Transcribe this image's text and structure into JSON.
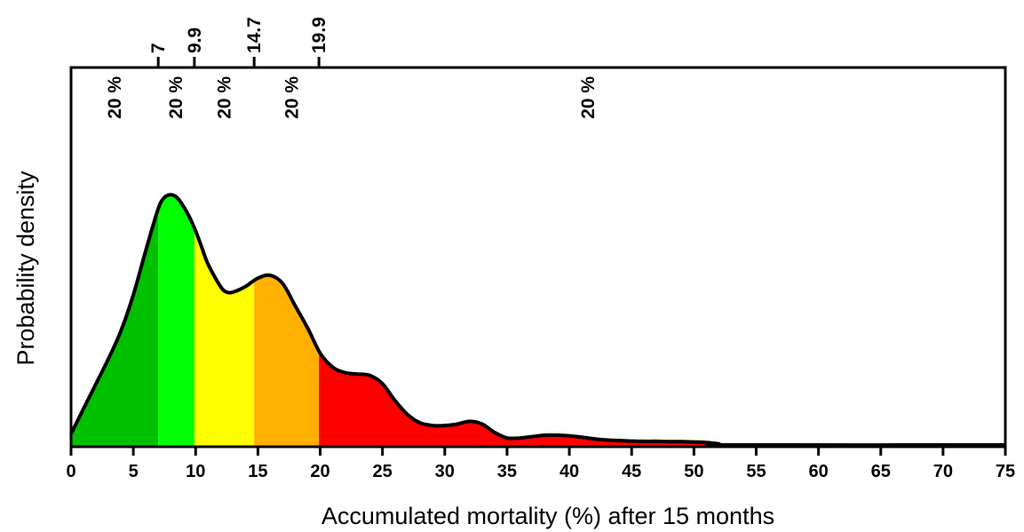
{
  "chart_data": {
    "type": "area",
    "xlabel": "Accumulated mortality (%) after 15 months",
    "ylabel": "Probability density",
    "xlim": [
      0,
      75
    ],
    "ylim": [
      0,
      1
    ],
    "x_ticks": [
      0,
      5,
      10,
      15,
      20,
      25,
      30,
      35,
      40,
      45,
      50,
      55,
      60,
      65,
      70,
      75
    ],
    "x_tick_labels": [
      "0",
      "5",
      "10",
      "15",
      "20",
      "25",
      "30",
      "35",
      "40",
      "45",
      "50",
      "55",
      "60",
      "65",
      "70",
      "75"
    ],
    "quantile_breaks": [
      7,
      9.9,
      14.7,
      19.9
    ],
    "quantile_break_labels": [
      "7",
      "9.9",
      "14.7",
      "19.9"
    ],
    "interval_labels": [
      {
        "x": 3.5,
        "label": "20 %"
      },
      {
        "x": 8.4,
        "label": "20 %"
      },
      {
        "x": 12.3,
        "label": "20 %"
      },
      {
        "x": 17.7,
        "label": "20 %"
      },
      {
        "x": 41.5,
        "label": "20 %"
      }
    ],
    "bands": [
      {
        "from": 0,
        "to": 7,
        "color": "#00c000"
      },
      {
        "from": 7,
        "to": 9.9,
        "color": "#00ff00"
      },
      {
        "from": 9.9,
        "to": 14.7,
        "color": "#ffff00"
      },
      {
        "from": 14.7,
        "to": 19.9,
        "color": "#ffb000"
      },
      {
        "from": 19.9,
        "to": 75,
        "color": "#ff0000"
      }
    ],
    "density": {
      "x": [
        0,
        1,
        2,
        3,
        4,
        5,
        6,
        7,
        7.5,
        8,
        8.5,
        9,
        9.5,
        10,
        10.5,
        11,
        12,
        12.5,
        13,
        14,
        15,
        16,
        17,
        18,
        19,
        20,
        21,
        22,
        23,
        24,
        25,
        26,
        27,
        28,
        29,
        30,
        31,
        32,
        33,
        34,
        35,
        36,
        37,
        38,
        39,
        40,
        41,
        42,
        43,
        44,
        45,
        46,
        47,
        48,
        49,
        50,
        51,
        52,
        53,
        75
      ],
      "y": [
        0.04,
        0.13,
        0.22,
        0.31,
        0.41,
        0.54,
        0.7,
        0.85,
        0.89,
        0.9,
        0.89,
        0.86,
        0.82,
        0.77,
        0.71,
        0.65,
        0.57,
        0.55,
        0.55,
        0.57,
        0.6,
        0.61,
        0.58,
        0.5,
        0.42,
        0.33,
        0.28,
        0.26,
        0.255,
        0.25,
        0.22,
        0.16,
        0.11,
        0.08,
        0.07,
        0.07,
        0.075,
        0.085,
        0.075,
        0.045,
        0.025,
        0.025,
        0.03,
        0.035,
        0.035,
        0.033,
        0.028,
        0.022,
        0.018,
        0.016,
        0.014,
        0.013,
        0.013,
        0.012,
        0.012,
        0.011,
        0.009,
        0.004,
        0,
        0
      ]
    },
    "grid": false,
    "legend": "none"
  }
}
